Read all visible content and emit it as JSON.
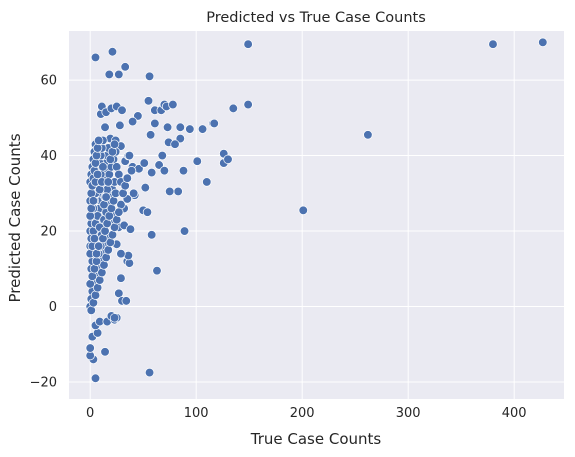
{
  "chart_data": {
    "type": "scatter",
    "title": "Predicted vs True Case Counts",
    "xlabel": "True Case Counts",
    "ylabel": "Predicted Case Counts",
    "xlim": [
      -20,
      447
    ],
    "ylim": [
      -24.5,
      73
    ],
    "xticks": [
      0,
      100,
      200,
      300,
      400
    ],
    "yticks": [
      -20,
      0,
      20,
      40,
      60
    ],
    "grid": true,
    "legend": false,
    "colors": {
      "background": "#eaeaf2",
      "grid": "#ffffff",
      "point": "#4c72b0",
      "point_edge": "#ffffff"
    },
    "points": [
      [
        149,
        69.5
      ],
      [
        380,
        69.5
      ],
      [
        427,
        70
      ],
      [
        5,
        66
      ],
      [
        21,
        67.5
      ],
      [
        27,
        61.5
      ],
      [
        33,
        63.5
      ],
      [
        18,
        61.5
      ],
      [
        56,
        61
      ],
      [
        10,
        51
      ],
      [
        11,
        53
      ],
      [
        15,
        51.5
      ],
      [
        20,
        52.5
      ],
      [
        25,
        53
      ],
      [
        30,
        52
      ],
      [
        45,
        50.5
      ],
      [
        55,
        54.5
      ],
      [
        61,
        52
      ],
      [
        67,
        52
      ],
      [
        70,
        53.5
      ],
      [
        72,
        53
      ],
      [
        78,
        53.5
      ],
      [
        94,
        47
      ],
      [
        106,
        47
      ],
      [
        116,
        48.5
      ],
      [
        135,
        52.5
      ],
      [
        149,
        53.5
      ],
      [
        117,
        48.5
      ],
      [
        126,
        40.5
      ],
      [
        126,
        38
      ],
      [
        130,
        39
      ],
      [
        110,
        33
      ],
      [
        101,
        38.5
      ],
      [
        88,
        36
      ],
      [
        83,
        30.5
      ],
      [
        75,
        30.5
      ],
      [
        85,
        44.5
      ],
      [
        85,
        47.5
      ],
      [
        73,
        47.5
      ],
      [
        74,
        43.5
      ],
      [
        61,
        48.5
      ],
      [
        57,
        45.5
      ],
      [
        40,
        49
      ],
      [
        28,
        48
      ],
      [
        19,
        44.5
      ],
      [
        14,
        47.5
      ],
      [
        24,
        44
      ],
      [
        29,
        42.5
      ],
      [
        33,
        38.5
      ],
      [
        36,
        40
      ],
      [
        40,
        37
      ],
      [
        46,
        36.5
      ],
      [
        51,
        38
      ],
      [
        58,
        35.5
      ],
      [
        65,
        37.5
      ],
      [
        70,
        36
      ],
      [
        80,
        43
      ],
      [
        68,
        40
      ],
      [
        52,
        31.5
      ],
      [
        42,
        29.5
      ],
      [
        35,
        28.5
      ],
      [
        32,
        26
      ],
      [
        29,
        27
      ],
      [
        25,
        24.5
      ],
      [
        22,
        22
      ],
      [
        27,
        21
      ],
      [
        32,
        21.5
      ],
      [
        38,
        20.5
      ],
      [
        50,
        25.5
      ],
      [
        54,
        25
      ],
      [
        58,
        19
      ],
      [
        89,
        20
      ],
      [
        201,
        25.5
      ],
      [
        262,
        45.5
      ],
      [
        63,
        9.5
      ],
      [
        56,
        -17.5
      ],
      [
        5,
        -19
      ],
      [
        3,
        -14
      ],
      [
        0,
        -13
      ],
      [
        0,
        -11
      ],
      [
        2,
        -8
      ],
      [
        7,
        -7
      ],
      [
        5,
        -5
      ],
      [
        9,
        -4
      ],
      [
        14,
        -12
      ],
      [
        16,
        -4
      ],
      [
        23,
        -3.5
      ],
      [
        25,
        -3
      ],
      [
        20,
        -2.5
      ],
      [
        23,
        -3
      ],
      [
        27,
        3.5
      ],
      [
        30,
        1.5
      ],
      [
        34,
        1.5
      ],
      [
        29,
        7.5
      ],
      [
        35,
        12
      ],
      [
        37,
        11.5
      ],
      [
        36,
        13.5
      ],
      [
        29,
        14
      ],
      [
        25,
        16.5
      ],
      [
        19,
        18.5
      ],
      [
        15,
        16
      ],
      [
        12,
        14.5
      ],
      [
        10,
        12.5
      ],
      [
        8,
        10
      ],
      [
        6,
        8
      ],
      [
        4,
        6
      ],
      [
        2,
        4
      ],
      [
        1,
        2
      ],
      [
        0,
        0
      ],
      [
        1,
        -1
      ],
      [
        3,
        1
      ],
      [
        5,
        3
      ],
      [
        7,
        5
      ],
      [
        9,
        7
      ],
      [
        11,
        9
      ],
      [
        13,
        11
      ],
      [
        15,
        13
      ],
      [
        17,
        15
      ],
      [
        19,
        17
      ],
      [
        21,
        19
      ],
      [
        23,
        21
      ],
      [
        25,
        23
      ],
      [
        27,
        25
      ],
      [
        1,
        10
      ],
      [
        2,
        12
      ],
      [
        3,
        14
      ],
      [
        4,
        16
      ],
      [
        5,
        18
      ],
      [
        6,
        20
      ],
      [
        7,
        22
      ],
      [
        8,
        24
      ],
      [
        9,
        26
      ],
      [
        10,
        28
      ],
      [
        11,
        30
      ],
      [
        12,
        32
      ],
      [
        13,
        34
      ],
      [
        14,
        36
      ],
      [
        15,
        38
      ],
      [
        16,
        40
      ],
      [
        17,
        42
      ],
      [
        0,
        20
      ],
      [
        1,
        22
      ],
      [
        2,
        24
      ],
      [
        3,
        26
      ],
      [
        4,
        28
      ],
      [
        5,
        30
      ],
      [
        6,
        32
      ],
      [
        7,
        34
      ],
      [
        8,
        36
      ],
      [
        9,
        38
      ],
      [
        10,
        40
      ],
      [
        11,
        42
      ],
      [
        12,
        44
      ],
      [
        0,
        33
      ],
      [
        1,
        35
      ],
      [
        2,
        37
      ],
      [
        3,
        39
      ],
      [
        4,
        41
      ],
      [
        5,
        43
      ],
      [
        0,
        28
      ],
      [
        1,
        30
      ],
      [
        2,
        32
      ],
      [
        3,
        34
      ],
      [
        4,
        36
      ],
      [
        5,
        38
      ],
      [
        6,
        40
      ],
      [
        7,
        42
      ],
      [
        8,
        44
      ],
      [
        0,
        16
      ],
      [
        1,
        18
      ],
      [
        3,
        20
      ],
      [
        5,
        22
      ],
      [
        7,
        24
      ],
      [
        9,
        21
      ],
      [
        11,
        19
      ],
      [
        13,
        23
      ],
      [
        15,
        25
      ],
      [
        17,
        27
      ],
      [
        19,
        29
      ],
      [
        21,
        31
      ],
      [
        23,
        33
      ],
      [
        18,
        35
      ],
      [
        20,
        37
      ],
      [
        22,
        39
      ],
      [
        24,
        41
      ],
      [
        14,
        29
      ],
      [
        16,
        31
      ],
      [
        10,
        35
      ],
      [
        12,
        37
      ],
      [
        0,
        6
      ],
      [
        2,
        8
      ],
      [
        4,
        10
      ],
      [
        6,
        12
      ],
      [
        8,
        14
      ],
      [
        10,
        16
      ],
      [
        12,
        18
      ],
      [
        14,
        20
      ],
      [
        16,
        22
      ],
      [
        18,
        24
      ],
      [
        20,
        26
      ],
      [
        22,
        28
      ],
      [
        24,
        30
      ],
      [
        0,
        24
      ],
      [
        1,
        26
      ],
      [
        3,
        28
      ],
      [
        0,
        14
      ],
      [
        2,
        16
      ],
      [
        4,
        18
      ],
      [
        6,
        14
      ],
      [
        8,
        16
      ],
      [
        5,
        33
      ],
      [
        7,
        35
      ],
      [
        9,
        31
      ],
      [
        11,
        33
      ],
      [
        13,
        27
      ],
      [
        15,
        29
      ],
      [
        17,
        33
      ],
      [
        19,
        39
      ],
      [
        21,
        41
      ],
      [
        23,
        43
      ],
      [
        25,
        37
      ],
      [
        27,
        35
      ],
      [
        29,
        33
      ],
      [
        31,
        30
      ],
      [
        33,
        32
      ],
      [
        35,
        34
      ],
      [
        37,
        40
      ],
      [
        39,
        36
      ],
      [
        41,
        30
      ]
    ]
  }
}
